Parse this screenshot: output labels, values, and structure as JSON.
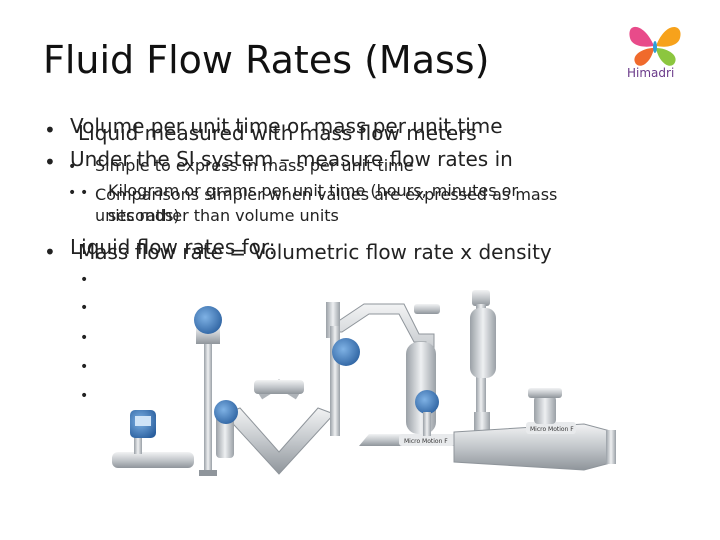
{
  "slide": {
    "title": "Fluid Flow Rates (Mass)",
    "logo": {
      "name": "Himadri",
      "colors": [
        "#e84b8a",
        "#f7a21b",
        "#f06a2c",
        "#8cc63f",
        "#2f9fd8"
      ]
    }
  },
  "bullets_back": [
    {
      "text": "Volume per unit time or mass per unit time"
    },
    {
      "text": "Under the SI system – measure flow rates in"
    },
    {
      "text": "Kilogram or grams per unit time (hours, minutes or"
    },
    {
      "text": "seconds)"
    },
    {
      "text": "Liquid flow rates for:"
    }
  ],
  "bullets_front": [
    {
      "text": "Liquid measured with mass flow meters"
    },
    {
      "text": "Simple to express in mass per unit time"
    },
    {
      "text": "Comparisons simpler when values are expressed as mass"
    },
    {
      "text": "units rather than volume units"
    },
    {
      "text": "Mass flow rate = Volumetric flow rate x density"
    }
  ],
  "meters": {
    "label_1": "Micro Motion F",
    "label_2": "Micro Motion F"
  },
  "colors": {
    "accent_blue": "#3a78b8",
    "steel": "#c8ccd0"
  }
}
